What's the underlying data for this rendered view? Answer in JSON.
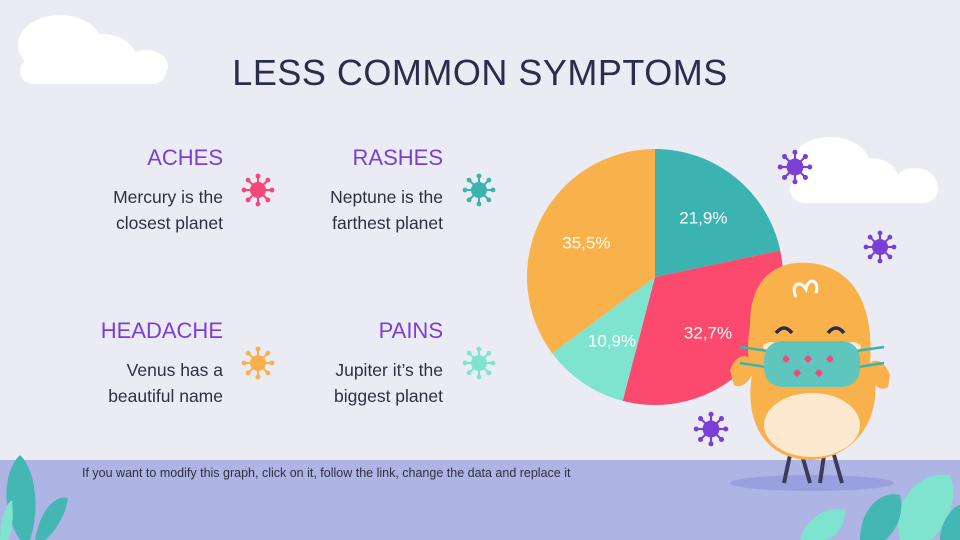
{
  "title": "LESS COMMON SYMPTOMS",
  "symptoms": [
    {
      "title": "ACHES",
      "desc1": "Mercury is the",
      "desc2": "closest planet",
      "color": "#f5457b"
    },
    {
      "title": "RASHES",
      "desc1": "Neptune is the",
      "desc2": "farthest planet",
      "color": "#3ab3b1"
    },
    {
      "title": "HEADACHE",
      "desc1": "Venus has a",
      "desc2": "beautiful name",
      "color": "#f7b04a"
    },
    {
      "title": "PAINS",
      "desc1": "Jupiter it’s the",
      "desc2": "biggest planet",
      "color": "#7ee3cf"
    }
  ],
  "footer_note": "If you want to modify this graph, click on it, follow the link, change the data and replace it",
  "chart_data": {
    "type": "pie",
    "slices": [
      {
        "label": "21,9%",
        "value": 21.9,
        "color": "#3ab3b1"
      },
      {
        "label": "32,7%",
        "value": 32.7,
        "color": "#fb4a6e"
      },
      {
        "label": "10,9%",
        "value": 10.9,
        "color": "#7ee3cf"
      },
      {
        "label": "35,5%",
        "value": 35.5,
        "color": "#f9b14c"
      }
    ]
  }
}
